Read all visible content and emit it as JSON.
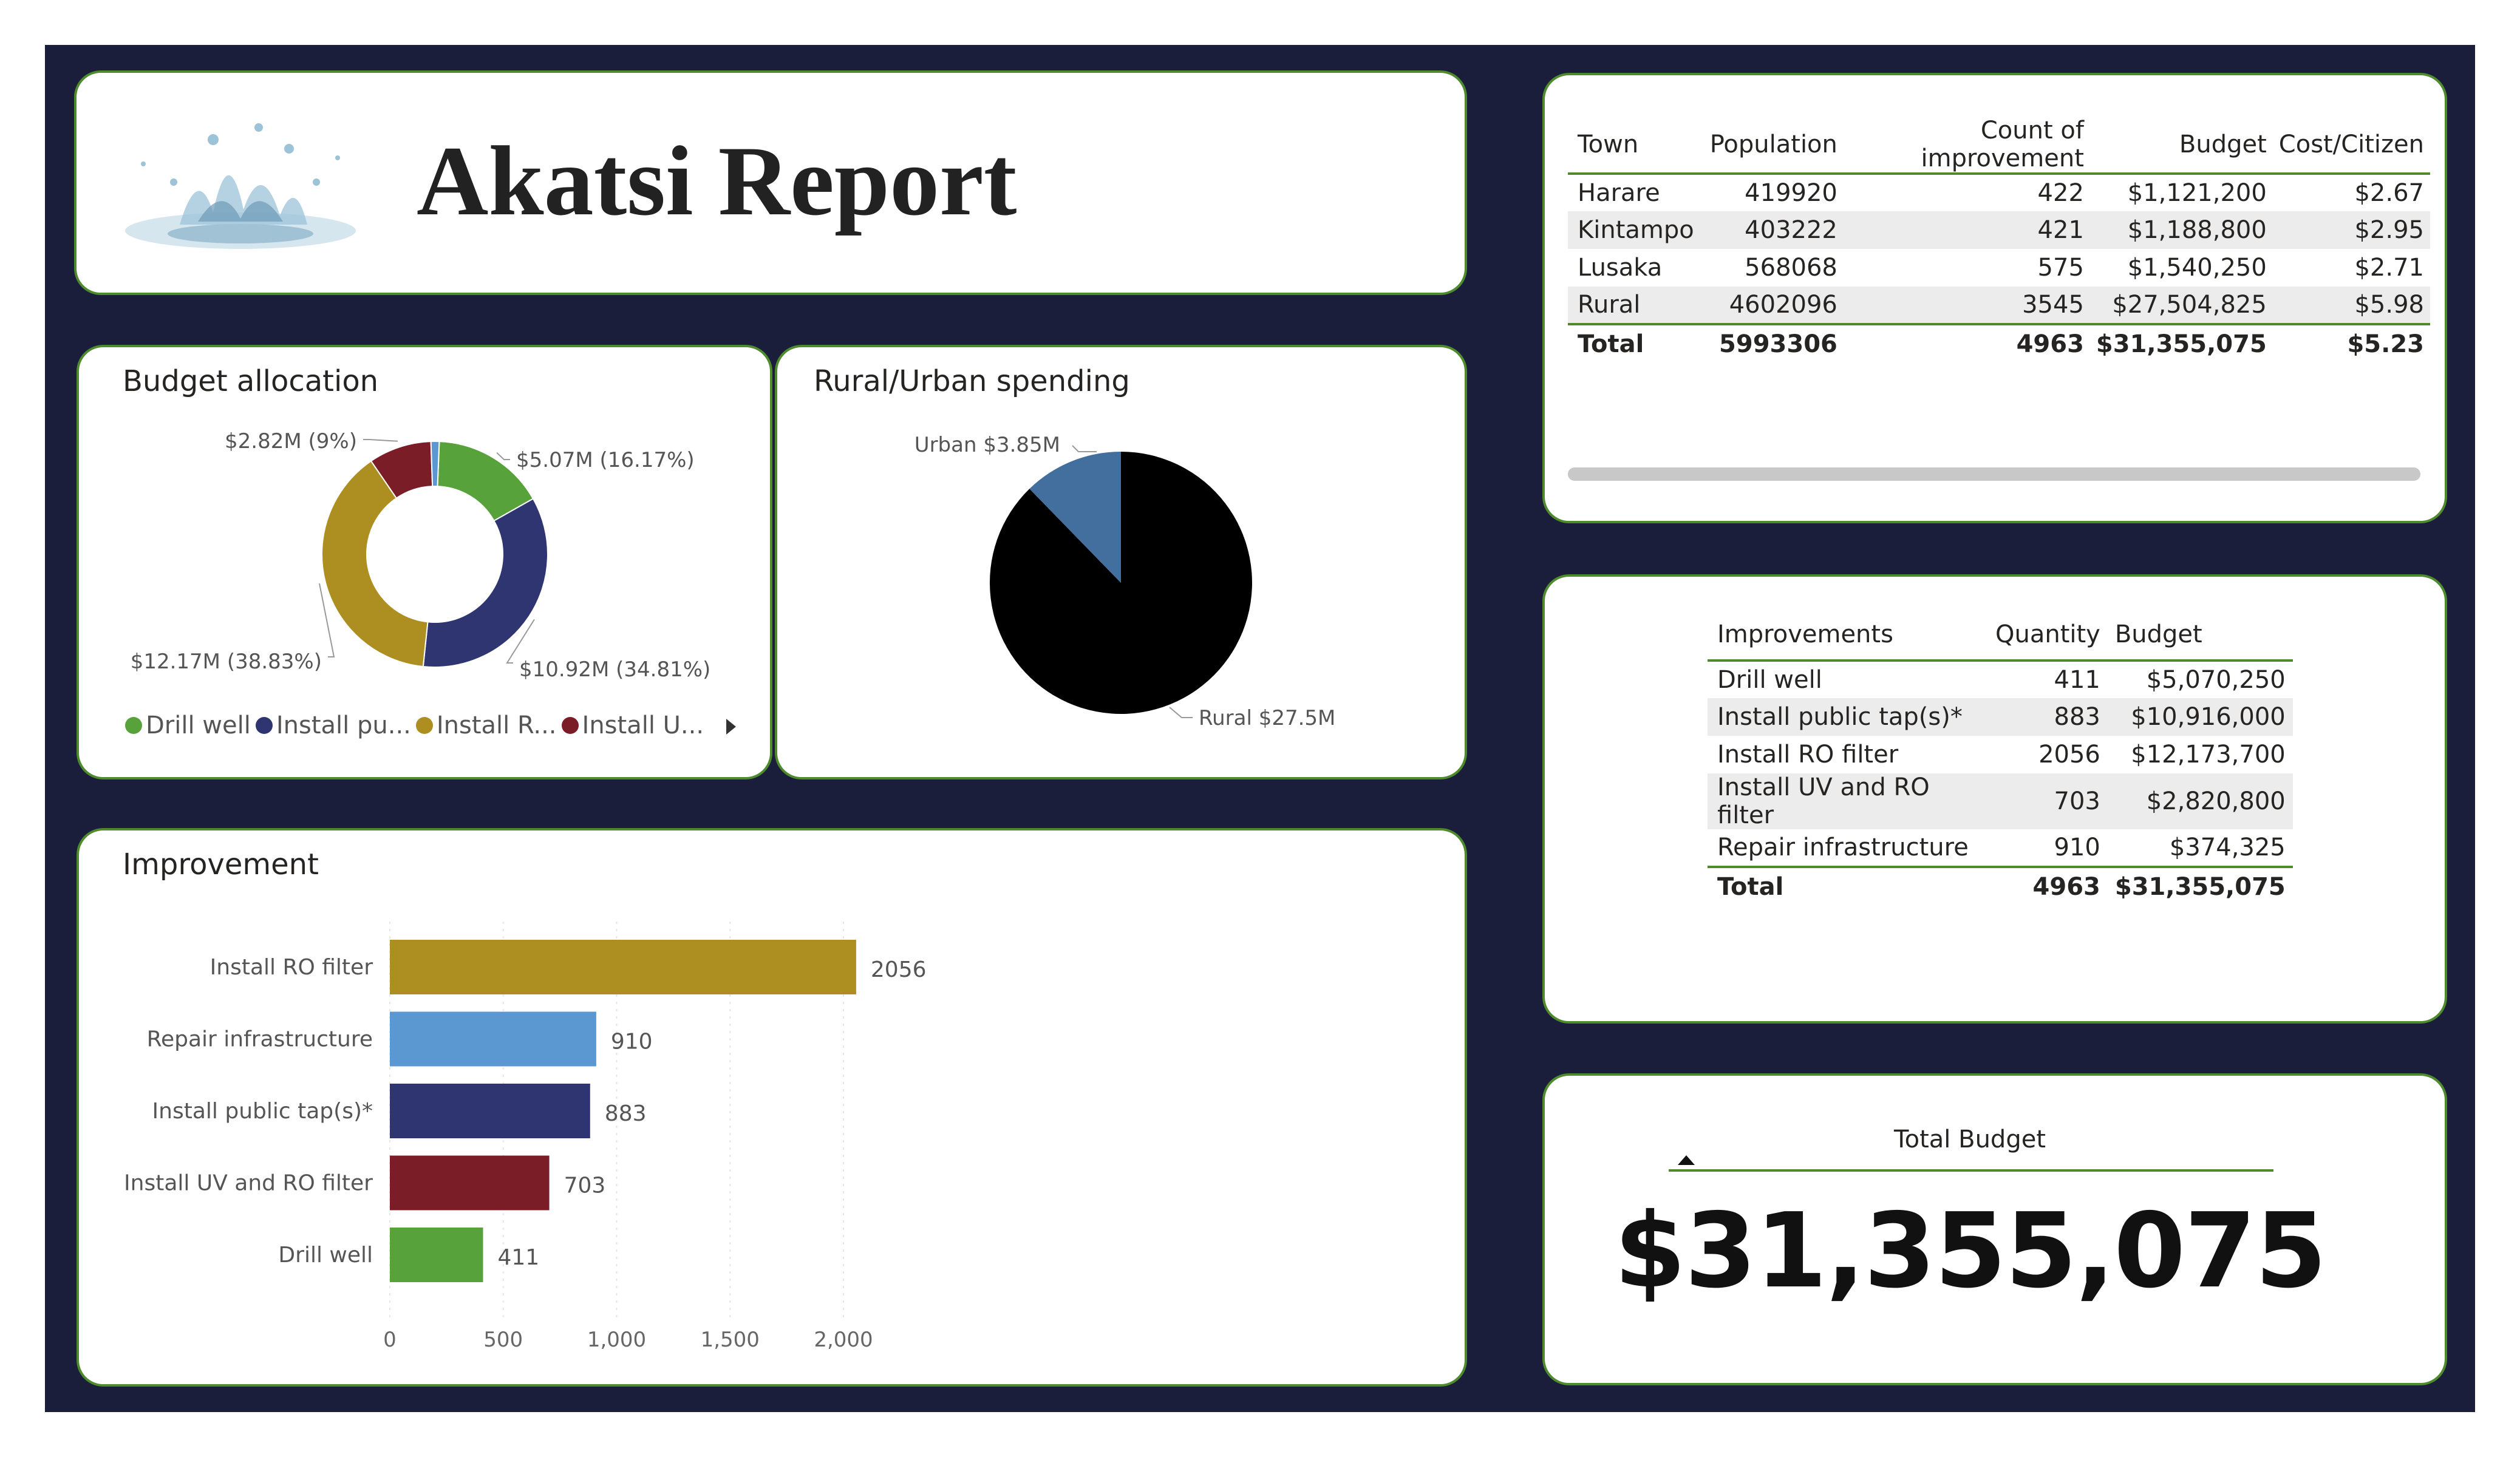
{
  "header": {
    "title": "Akatsi Report"
  },
  "budget_allocation": {
    "title": "Budget allocation",
    "legend_items": [
      {
        "label": "Drill well",
        "color": "#58a23c"
      },
      {
        "label": "Install pu...",
        "color": "#2e3570"
      },
      {
        "label": "Install R...",
        "color": "#ad8f21"
      },
      {
        "label": "Install U...",
        "color": "#7b1d27"
      }
    ]
  },
  "rural_urban": {
    "title": "Rural/Urban spending"
  },
  "improvement": {
    "title": "Improvement"
  },
  "town_table": {
    "headers": [
      "Town",
      "Population",
      "Count of improvement",
      "Budget",
      "Cost/Citizen"
    ],
    "rows": [
      [
        "Harare",
        "419920",
        "422",
        "$1,121,200",
        "$2.67"
      ],
      [
        "Kintampo",
        "403222",
        "421",
        "$1,188,800",
        "$2.95"
      ],
      [
        "Lusaka",
        "568068",
        "575",
        "$1,540,250",
        "$2.71"
      ],
      [
        "Rural",
        "4602096",
        "3545",
        "$27,504,825",
        "$5.98"
      ]
    ],
    "total": [
      "Total",
      "5993306",
      "4963",
      "$31,355,075",
      "$5.23"
    ]
  },
  "improvements_table": {
    "headers": [
      "Improvements",
      "Quantity",
      "Budget"
    ],
    "rows": [
      [
        "Drill well",
        "411",
        "$5,070,250"
      ],
      [
        "Install public tap(s)*",
        "883",
        "$10,916,000"
      ],
      [
        "Install RO filter",
        "2056",
        "$12,173,700"
      ],
      [
        "Install UV and RO filter",
        "703",
        "$2,820,800"
      ],
      [
        "Repair infrastructure",
        "910",
        "$374,325"
      ]
    ],
    "total": [
      "Total",
      "4963",
      "$31,355,075"
    ]
  },
  "total_budget": {
    "label": "Total Budget",
    "value": "$31,355,075"
  },
  "chart_data": [
    {
      "type": "pie",
      "variant": "donut",
      "title": "Budget allocation",
      "categories": [
        "Drill well",
        "Install public tap(s)*",
        "Install RO filter",
        "Install UV and RO filter",
        "Repair infrastructure"
      ],
      "values": [
        5.07,
        10.92,
        12.17,
        2.82,
        0.37
      ],
      "units": "$M",
      "data_labels": [
        "$5.07M (16.17%)",
        "$10.92M (34.81%)",
        "$12.17M (38.83%)",
        "$2.82M (9%)",
        ""
      ],
      "colors": [
        "#58a23c",
        "#2e3570",
        "#ad8f21",
        "#7b1d27",
        "#5b98d1"
      ],
      "legend": "bottom"
    },
    {
      "type": "pie",
      "title": "Rural/Urban spending",
      "categories": [
        "Urban",
        "Rural"
      ],
      "values": [
        3.85,
        27.5
      ],
      "data_labels": [
        "Urban $3.85M",
        "Rural $27.5M"
      ],
      "colors": [
        "#436f9f",
        "#000000"
      ]
    },
    {
      "type": "bar",
      "orientation": "horizontal",
      "title": "Improvement",
      "categories": [
        "Install RO filter",
        "Repair infrastructure",
        "Install public tap(s)*",
        "Install UV and RO filter",
        "Drill well"
      ],
      "values": [
        2056,
        910,
        883,
        703,
        411
      ],
      "colors": [
        "#ad8f21",
        "#5b98d1",
        "#2e3570",
        "#7b1d27",
        "#58a23c"
      ],
      "xlim": [
        0,
        2000
      ],
      "xticks": [
        0,
        500,
        1000,
        1500,
        2000
      ],
      "xtick_labels": [
        "0",
        "500",
        "1,000",
        "1,500",
        "2,000"
      ],
      "grid": true
    }
  ]
}
